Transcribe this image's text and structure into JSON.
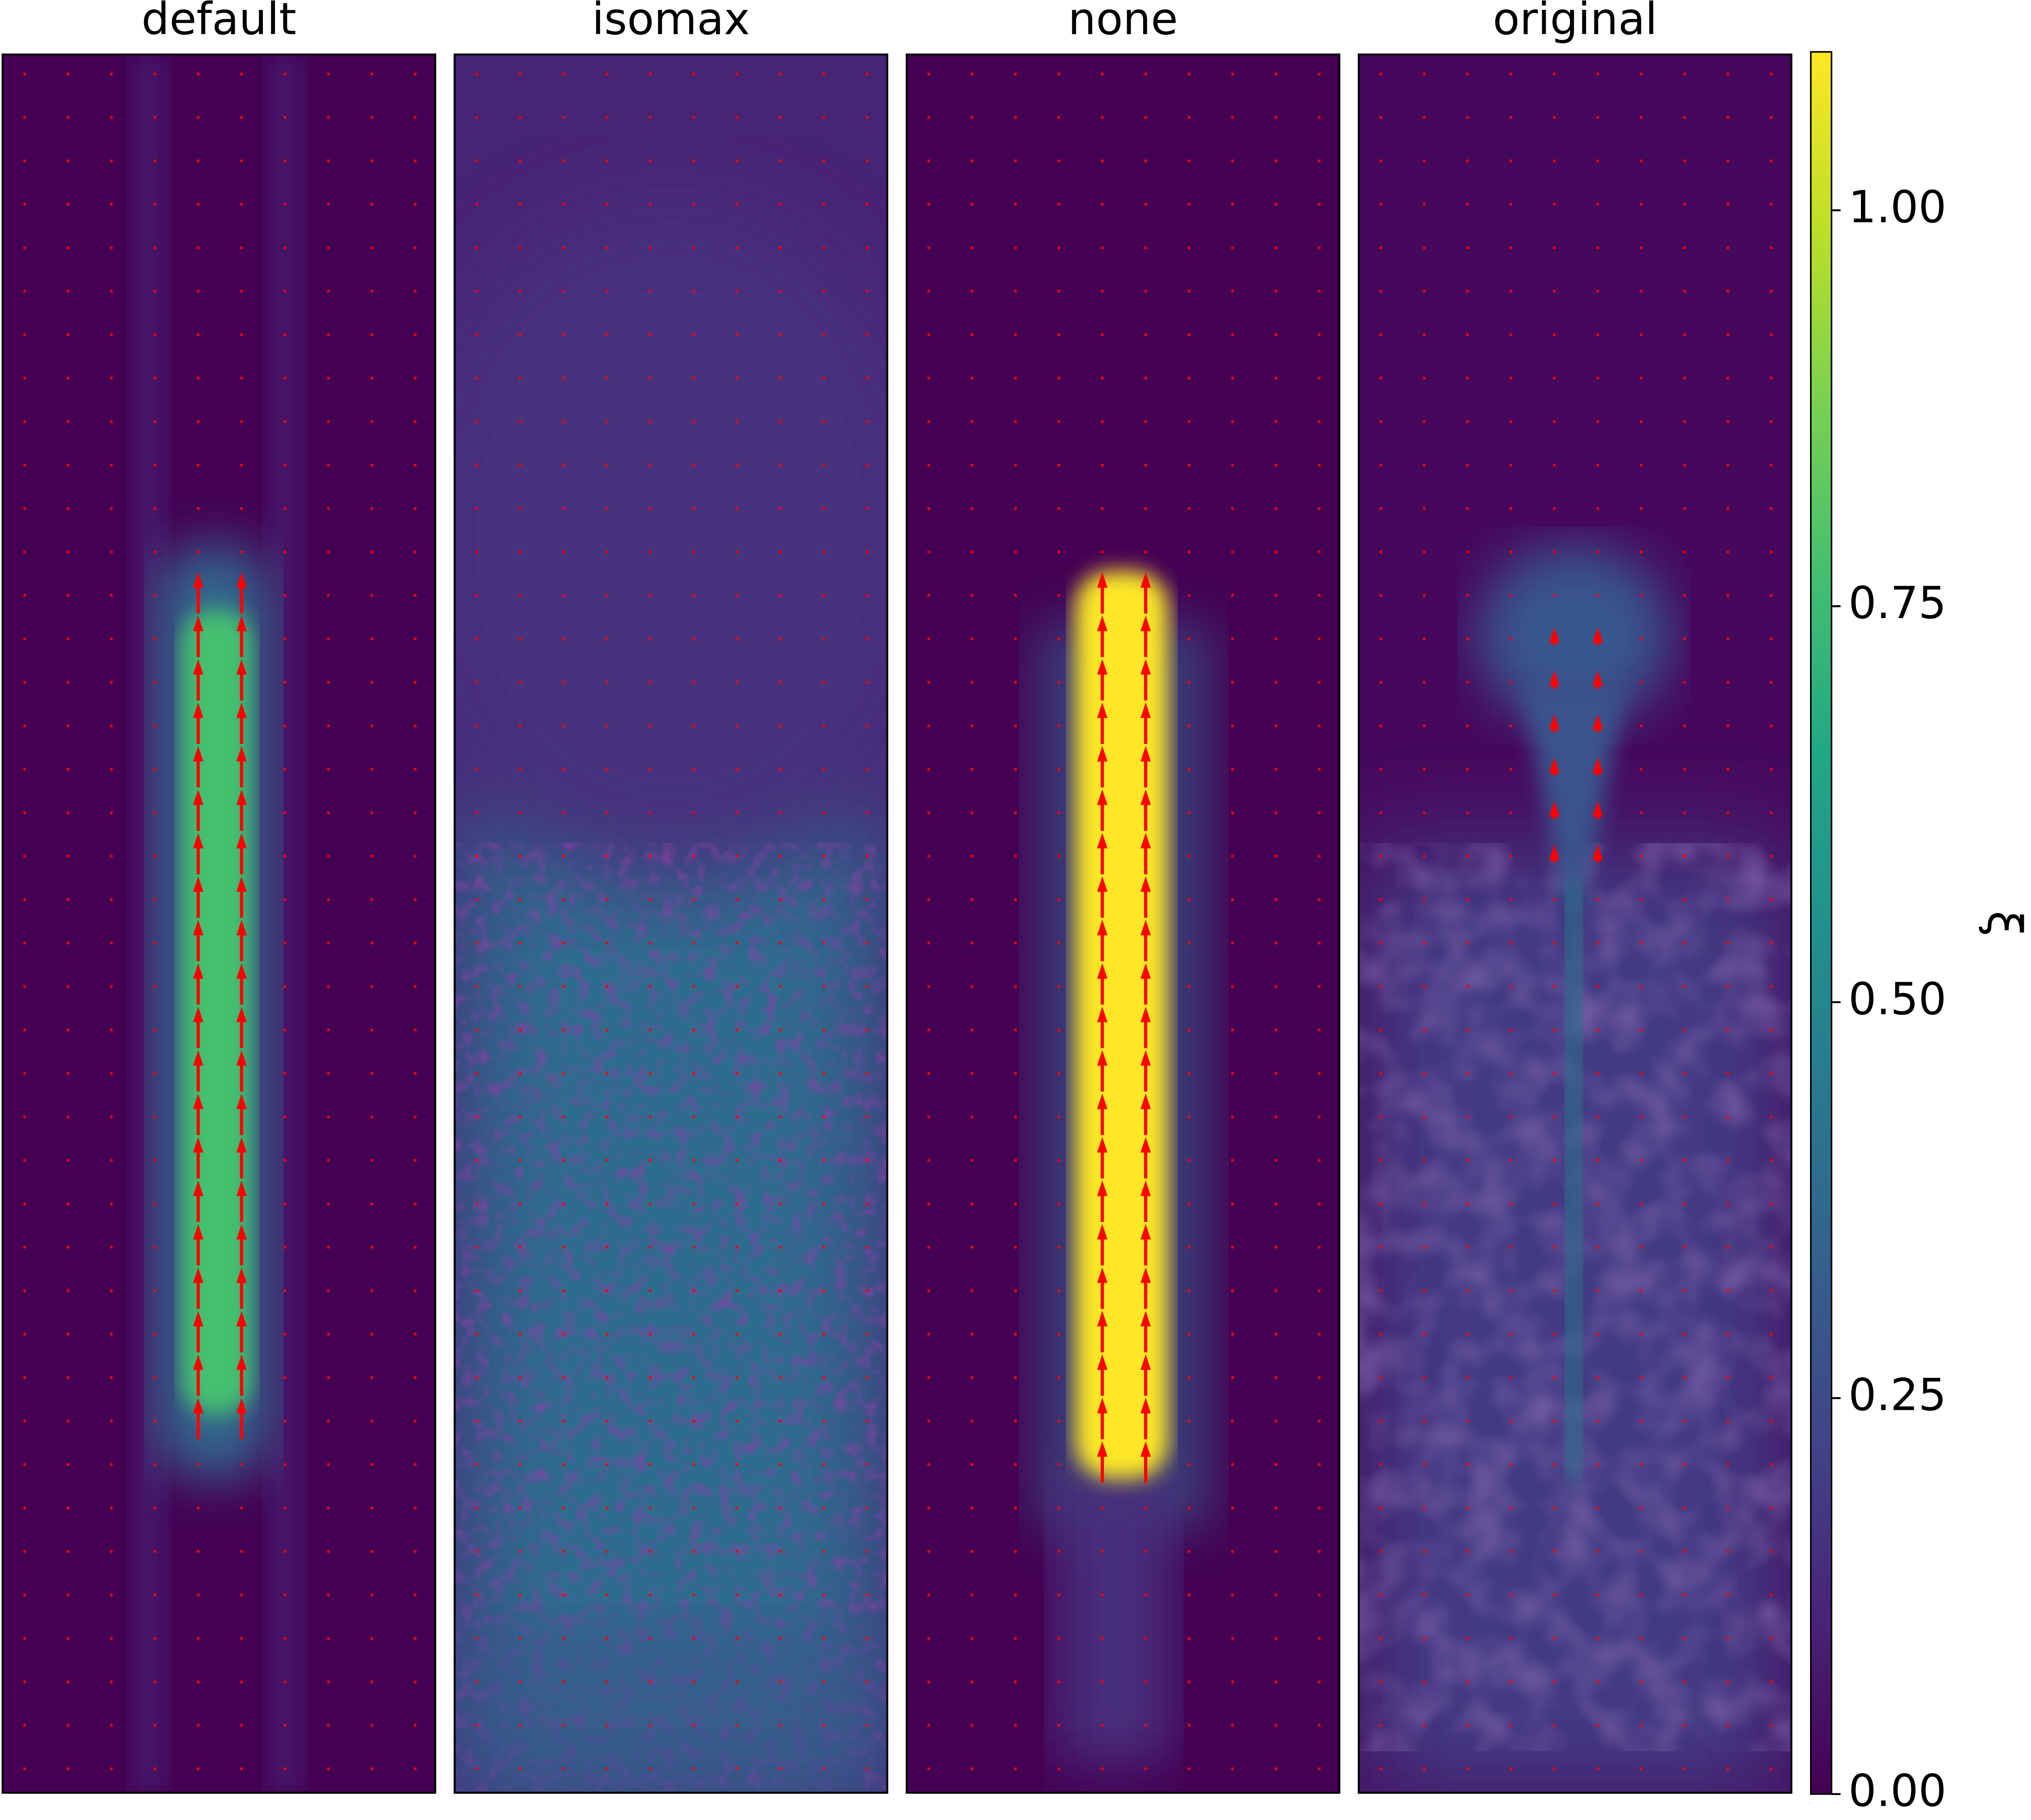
{
  "chart_data": {
    "type": "heatmap",
    "panels": [
      {
        "title": "default"
      },
      {
        "title": "isomax"
      },
      {
        "title": "none"
      },
      {
        "title": "original"
      }
    ],
    "colormap": "viridis",
    "colorbar": {
      "label": "ξ",
      "lim": [
        0,
        1.1
      ],
      "ticks": [
        {
          "value": 0,
          "label": "0.00"
        },
        {
          "value": 0.25,
          "label": "0.25"
        },
        {
          "value": 0.5,
          "label": "0.50"
        },
        {
          "value": 0.75,
          "label": "0.75"
        },
        {
          "value": 1,
          "label": "1.00"
        }
      ]
    }
  }
}
